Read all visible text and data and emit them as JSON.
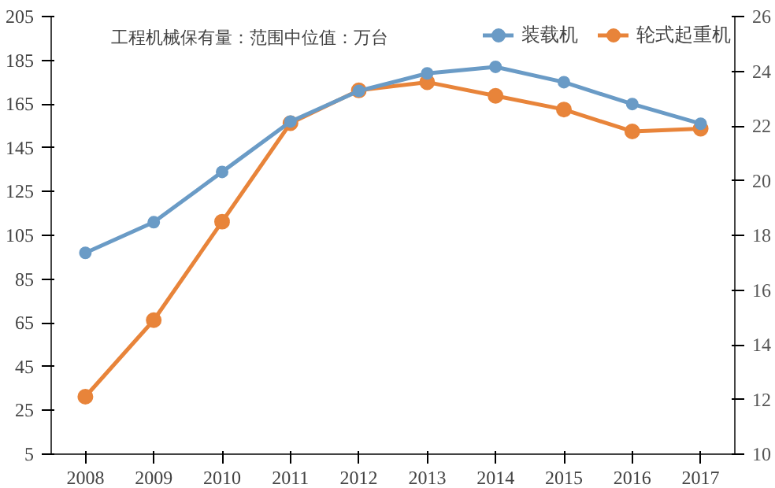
{
  "chart_data": {
    "type": "line",
    "categories": [
      "2008",
      "2009",
      "2010",
      "2011",
      "2012",
      "2013",
      "2014",
      "2015",
      "2016",
      "2017"
    ],
    "series": [
      {
        "name": "装载机",
        "color": "#6a9bc6",
        "values": [
          97,
          111,
          134,
          157,
          171,
          179,
          182,
          175,
          165,
          156
        ]
      },
      {
        "name": "轮式起重机",
        "color": "#e8843a",
        "axis": "y2",
        "values": [
          12.1,
          14.9,
          18.5,
          22.1,
          23.3,
          23.6,
          23.1,
          22.6,
          21.8,
          21.9
        ]
      }
    ],
    "ylim": [
      5,
      205
    ],
    "yticks": [
      5,
      25,
      45,
      65,
      85,
      105,
      125,
      145,
      165,
      185,
      205
    ],
    "y2lim": [
      10,
      26
    ],
    "y2ticks": [
      10,
      12,
      14,
      16,
      18,
      20,
      22,
      24,
      26
    ],
    "annotations": [
      "工程机械保有量：范围中位值：万台"
    ],
    "legend": "top",
    "marker": "circle",
    "grid": false
  }
}
